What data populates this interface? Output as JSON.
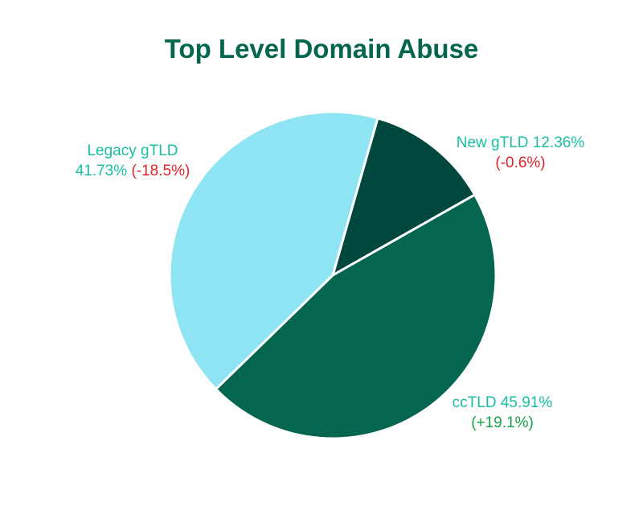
{
  "chart_data": {
    "type": "pie",
    "title": "Top Level Domain Abuse",
    "slices": [
      {
        "key": "new",
        "label": "New gTLD",
        "value": 12.36,
        "value_text": "12.36%",
        "change": -0.6,
        "change_text": "(-0.6%)",
        "color": "#00473e"
      },
      {
        "key": "cc",
        "label": "ccTLD",
        "value": 45.91,
        "value_text": "45.91%",
        "change": 19.1,
        "change_text": "(+19.1%)",
        "color": "#05664f"
      },
      {
        "key": "legacy",
        "label": "Legacy gTLD",
        "value": 41.73,
        "value_text": "41.73%",
        "change": -18.5,
        "change_text": "(-18.5%)",
        "color": "#8ee4f2"
      }
    ],
    "legend": "none",
    "colors": {
      "title": "#05664f",
      "label": "#19bfa2",
      "negative_change": "#e0242a",
      "positive_change": "#15a046"
    }
  }
}
